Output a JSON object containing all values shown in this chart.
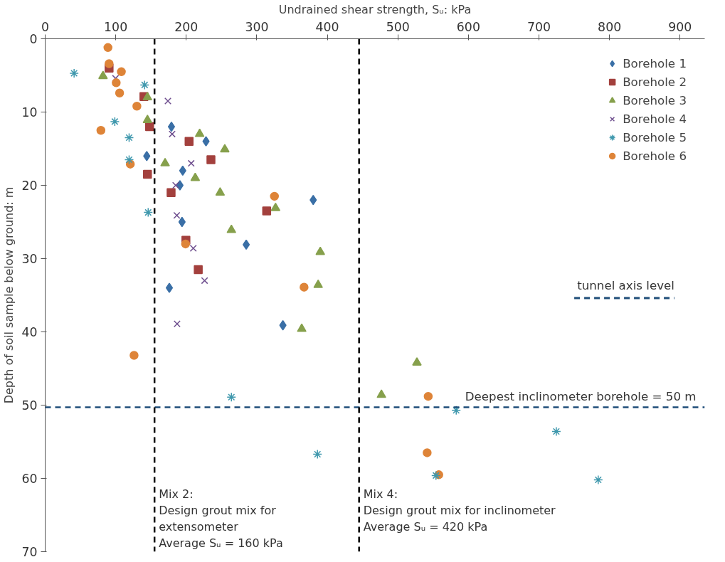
{
  "chart_data": {
    "type": "scatter",
    "xlabel": "Undrained shear strength, Sᵤ: kPa",
    "ylabel": "Depth of soil sample below ground: m",
    "xlim": [
      0,
      935
    ],
    "ylim": [
      70,
      0
    ],
    "xticks": [
      0,
      100,
      200,
      300,
      400,
      500,
      600,
      700,
      800,
      900
    ],
    "yticks": [
      0,
      10,
      20,
      30,
      40,
      50,
      60,
      70
    ],
    "legend": "top right",
    "series": [
      {
        "name": "Borehole 1",
        "color": "#3a6fa6",
        "marker": "diamond",
        "x": [
          179,
          144,
          228,
          195,
          191,
          194,
          285,
          176,
          380,
          337
        ],
        "values": [
          12.0,
          16.0,
          14.0,
          18.0,
          20.0,
          25.0,
          28.1,
          34.0,
          22.0,
          39.1
        ]
      },
      {
        "name": "Borehole 2",
        "color": "#a3403d",
        "marker": "square",
        "x": [
          90.6,
          140,
          148,
          145,
          204,
          235,
          178.5,
          314,
          199.5,
          217
        ],
        "values": [
          4.0,
          7.9,
          12.0,
          18.5,
          14.0,
          16.5,
          21.0,
          23.5,
          27.5,
          31.5
        ]
      },
      {
        "name": "Borehole 3",
        "color": "#86a04c",
        "marker": "triangle",
        "x": [
          82,
          145,
          145,
          170,
          219,
          254.6,
          212.7,
          248,
          264,
          326.6,
          390,
          387,
          363.7,
          527,
          476.7
        ],
        "values": [
          5.1,
          8.0,
          11.1,
          17.0,
          13.0,
          15.1,
          19.0,
          21.0,
          26.1,
          23.1,
          29.1,
          33.6,
          39.6,
          44.2,
          48.6
        ]
      },
      {
        "name": "Borehole 4",
        "color": "#6f4f8f",
        "marker": "cross",
        "x": [
          99.7,
          174,
          180,
          207,
          185,
          186.6,
          210,
          226,
          187
        ],
        "values": [
          5.4,
          8.5,
          13.0,
          17.0,
          20.0,
          24.1,
          28.6,
          33.0,
          38.9
        ]
      },
      {
        "name": "Borehole 5",
        "color": "#3f98ad",
        "x": [
          41,
          141,
          98.7,
          119,
          119,
          146,
          264,
          386,
          582.7,
          724.6,
          554,
          784
        ],
        "values": [
          4.7,
          6.3,
          11.3,
          13.5,
          16.5,
          23.7,
          48.9,
          56.7,
          50.7,
          53.6,
          59.6,
          60.2
        ]
      },
      {
        "name": "Borehole 6",
        "color": "#de8438",
        "marker": "circle",
        "x": [
          89,
          90.6,
          108,
          100.7,
          105.5,
          130,
          79,
          120.7,
          199,
          325,
          367,
          126,
          543,
          541.5,
          558
        ],
        "values": [
          1.2,
          3.4,
          4.5,
          6.0,
          7.4,
          9.2,
          12.5,
          17.1,
          28.0,
          21.5,
          33.9,
          43.2,
          48.8,
          56.5,
          59.5
        ]
      },
      {
        "name": "tunnel axis level",
        "type": "line",
        "color": "#1f4e79",
        "line_style": "dashed",
        "x": [
          750,
          892
        ],
        "values": [
          35.4,
          35.4
        ]
      }
    ],
    "ref_lines": [
      {
        "axis": "y",
        "value": 50.3,
        "label": "Deepest inclinometer borehole = 50 m",
        "color": "#1f4e79",
        "line_style": "dashed"
      },
      {
        "axis": "x",
        "value": 155,
        "color": "#000000",
        "line_style": "dashed"
      },
      {
        "axis": "x",
        "value": 445,
        "color": "#000000",
        "line_style": "dashed"
      }
    ],
    "annotations": [
      "Mix 2:\nDesign grout mix  for\nextensometer\nAverage Sᵤ = 160 kPa",
      "Mix 4:\nDesign grout mix for inclinometer\nAverage Sᵤ = 420 kPa"
    ]
  }
}
